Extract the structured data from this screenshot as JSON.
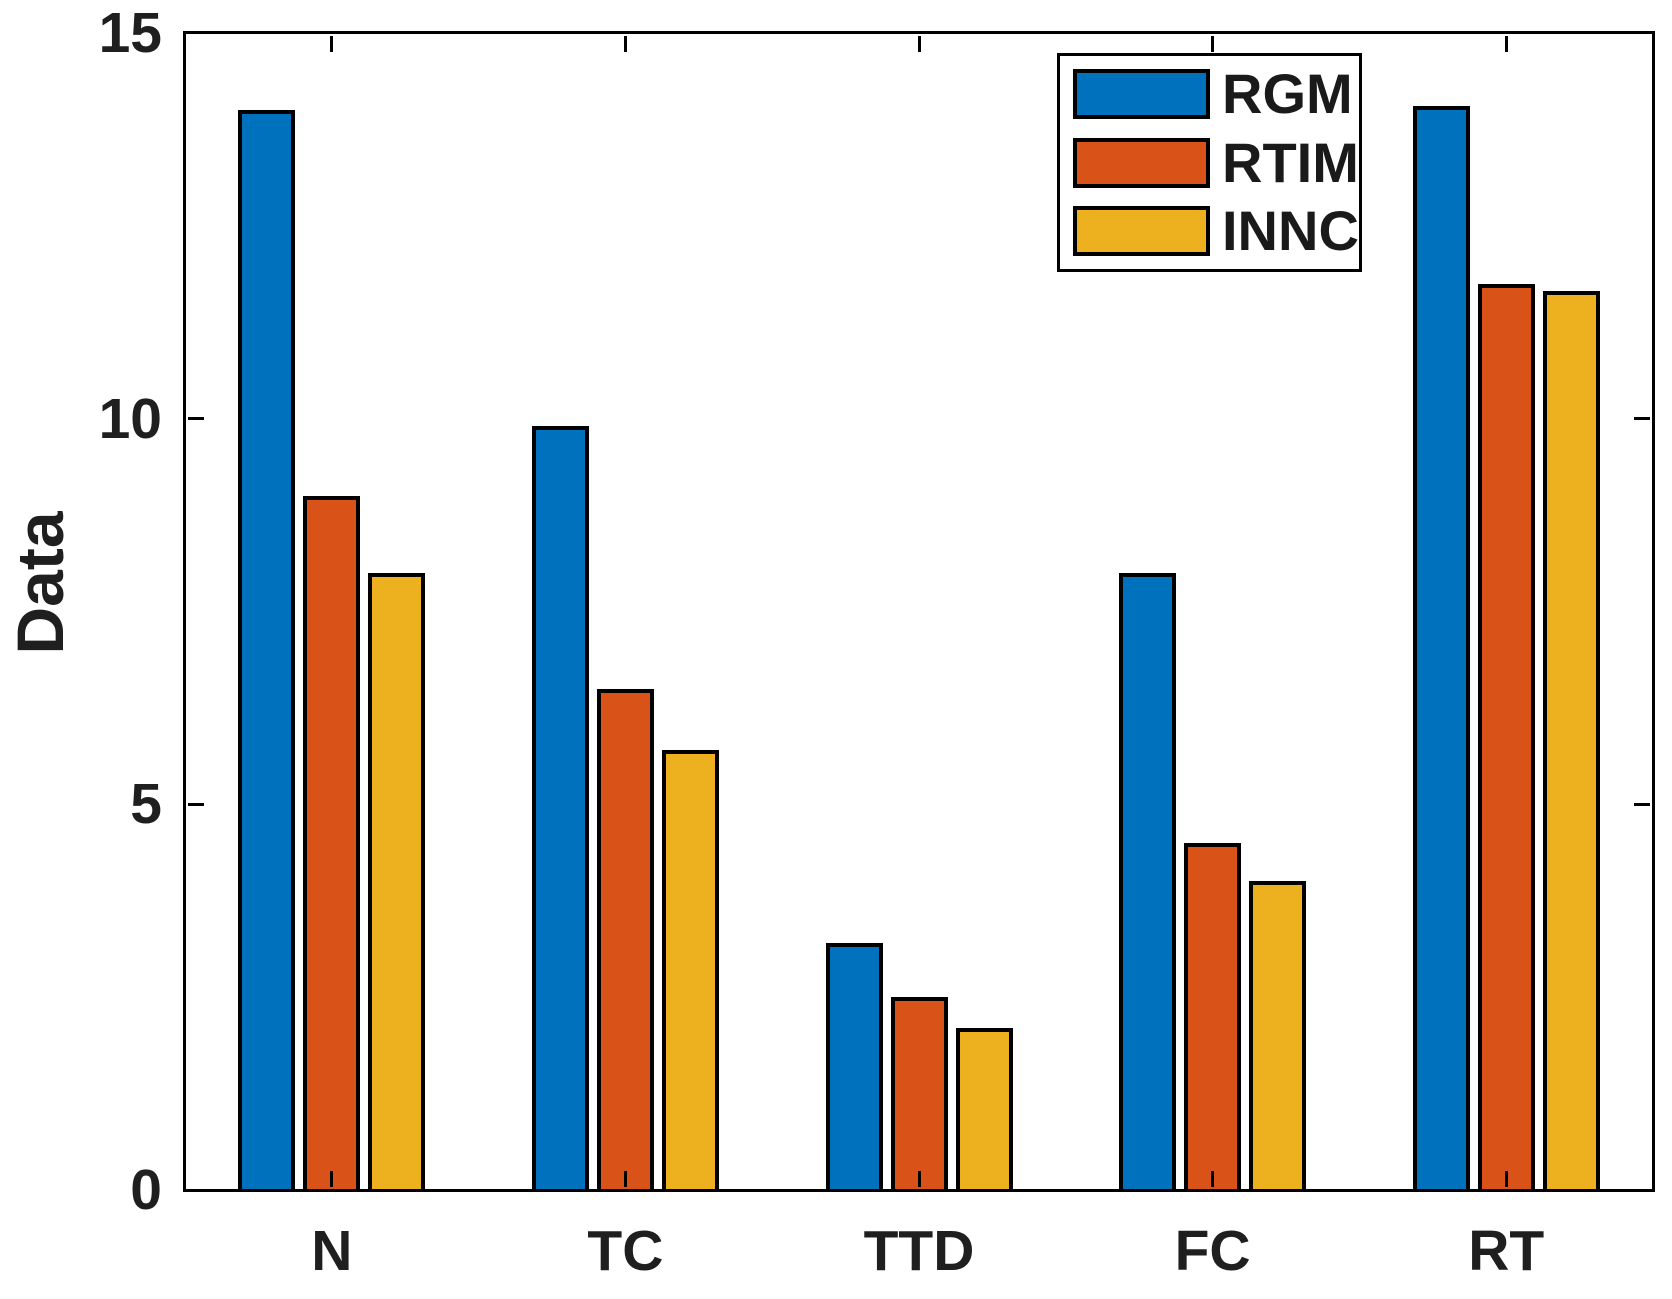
{
  "figure": {
    "background": "#ffffff",
    "axis_color": "#000000",
    "text_color": "#1f1f1f"
  },
  "chart_data": {
    "type": "bar",
    "title": "",
    "xlabel": "",
    "ylabel": "Data",
    "categories": [
      "N",
      "TC",
      "TTD",
      "FC",
      "RT"
    ],
    "series": [
      {
        "name": "RGM",
        "color": "#0072BD",
        "values": [
          14.0,
          9.9,
          3.2,
          8.0,
          14.05
        ]
      },
      {
        "name": "RTIM",
        "color": "#D95319",
        "values": [
          9.0,
          6.5,
          2.5,
          4.5,
          11.75
        ]
      },
      {
        "name": "INNC",
        "color": "#EDB120",
        "values": [
          8.0,
          5.7,
          2.1,
          4.0,
          11.65
        ]
      }
    ],
    "bar_edge_color": "#000000",
    "ylim": [
      0,
      15
    ],
    "yticks": [
      0,
      5,
      10,
      15
    ],
    "grid": false,
    "tick_direction": "in",
    "box": true,
    "legend": {
      "position": "northeast",
      "entries": [
        "RGM",
        "RTIM",
        "INNC"
      ]
    }
  }
}
